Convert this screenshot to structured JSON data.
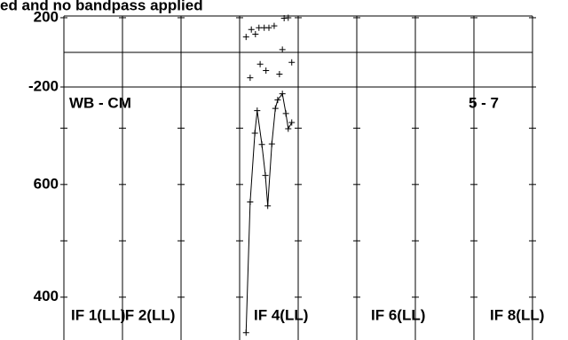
{
  "chart_data": {
    "type": "scatter",
    "title": "ed and no bandpass applied",
    "annotations": [
      "WB - CM",
      "5 - 7"
    ],
    "if_labels": [
      "IF 1(LL)",
      "IF 2(LL)",
      "IF 4(LL)",
      "IF 6(LL)",
      "IF 8(LL)"
    ],
    "xlim": [
      0,
      8
    ],
    "xticks": [
      0,
      1,
      2,
      3,
      4,
      5,
      6,
      7,
      8
    ],
    "color": "#000000",
    "panels": [
      {
        "name_role": "phase",
        "ylim": [
          -200,
          210
        ],
        "yticks": [
          -200,
          200
        ],
        "zero_line": 0,
        "connect": false,
        "x": [
          3.11,
          3.2,
          3.27,
          3.33,
          3.42,
          3.5,
          3.59,
          3.76,
          3.83,
          3.18,
          3.35,
          3.45,
          3.68,
          3.73,
          3.89
        ],
        "values": [
          89,
          132,
          105,
          142,
          142,
          142,
          153,
          197,
          200,
          -147,
          -68,
          -105,
          -126,
          16,
          -58
        ]
      },
      {
        "name_role": "amplitude",
        "ylim": [
          324,
          773
        ],
        "yticks": [
          400,
          600
        ],
        "yminorticks": [
          500,
          700
        ],
        "connect": true,
        "x": [
          3.11,
          3.18,
          3.26,
          3.3,
          3.38,
          3.44,
          3.48,
          3.55,
          3.61,
          3.65,
          3.73,
          3.79,
          3.83,
          3.89
        ],
        "values": [
          337,
          569,
          691,
          731,
          671,
          616,
          562,
          672,
          735,
          750,
          761,
          726,
          699,
          710
        ]
      }
    ]
  }
}
